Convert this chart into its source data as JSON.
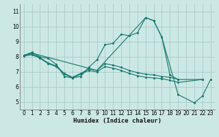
{
  "xlabel": "Humidex (Indice chaleur)",
  "background_color": "#cce8e5",
  "grid_color": "#aacfcc",
  "line_color": "#1a7a6e",
  "xlim": [
    -0.5,
    23.5
  ],
  "ylim": [
    4.5,
    11.5
  ],
  "xticks": [
    0,
    1,
    2,
    3,
    4,
    5,
    6,
    7,
    8,
    9,
    10,
    11,
    12,
    13,
    14,
    15,
    16,
    17,
    18,
    19,
    20,
    21,
    22,
    23
  ],
  "yticks": [
    5,
    6,
    7,
    8,
    9,
    10,
    11
  ],
  "c1x": [
    0,
    1,
    2,
    3,
    4,
    5,
    6,
    7,
    8,
    9,
    10,
    11,
    12,
    13,
    14,
    15,
    16,
    17,
    18,
    19
  ],
  "c1y": [
    8.1,
    8.3,
    8.0,
    7.9,
    7.5,
    6.7,
    6.6,
    6.7,
    7.3,
    7.8,
    8.8,
    8.9,
    9.5,
    9.4,
    9.6,
    10.6,
    10.4,
    9.3,
    6.8,
    6.5
  ],
  "c2x": [
    0,
    1,
    2,
    3,
    4,
    5,
    6,
    7,
    8,
    9,
    10,
    11,
    12,
    13,
    14,
    15,
    16,
    17,
    18,
    19,
    22
  ],
  "c2y": [
    8.1,
    8.2,
    7.95,
    7.6,
    7.4,
    6.9,
    6.65,
    6.9,
    7.2,
    7.1,
    7.55,
    7.45,
    7.3,
    7.1,
    6.95,
    6.85,
    6.8,
    6.7,
    6.65,
    6.5,
    6.5
  ],
  "c3x": [
    0,
    1,
    2,
    3,
    4,
    5,
    6,
    7,
    8,
    9,
    10,
    11,
    12,
    13,
    14,
    15,
    16,
    17,
    18,
    19,
    22
  ],
  "c3y": [
    8.05,
    8.15,
    7.9,
    7.55,
    7.35,
    6.85,
    6.6,
    6.85,
    7.1,
    7.0,
    7.35,
    7.25,
    7.1,
    6.9,
    6.75,
    6.65,
    6.6,
    6.55,
    6.45,
    6.3,
    6.5
  ],
  "c4x": [
    0,
    1,
    9,
    15,
    16,
    17,
    19,
    21,
    22,
    23
  ],
  "c4y": [
    8.1,
    8.25,
    7.1,
    10.6,
    10.4,
    9.3,
    5.5,
    4.95,
    5.4,
    6.5
  ]
}
